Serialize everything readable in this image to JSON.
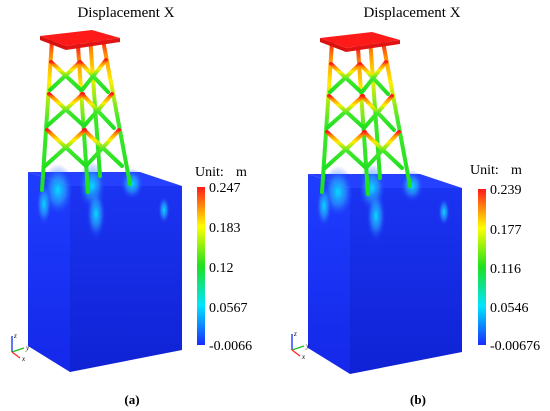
{
  "panels": [
    {
      "title": "Displacement X",
      "unit_label": "Unit:",
      "unit": "m",
      "ticks": [
        "0.247",
        "0.183",
        "0.12",
        "0.0567",
        "-0.0066"
      ],
      "caption": "(a)"
    },
    {
      "title": "Displacement X",
      "unit_label": "Unit:",
      "unit": "m",
      "ticks": [
        "0.239",
        "0.177",
        "0.116",
        "0.0546",
        "-0.00676"
      ],
      "caption": "(b)"
    }
  ],
  "axis_triad": {
    "z": "z",
    "x": "x",
    "y": "y"
  },
  "colors": {
    "low": "#1a2bff",
    "cyan": "#00e5ff",
    "green": "#1fe01f",
    "yellow": "#ffff00",
    "high": "#ff1a1a"
  }
}
